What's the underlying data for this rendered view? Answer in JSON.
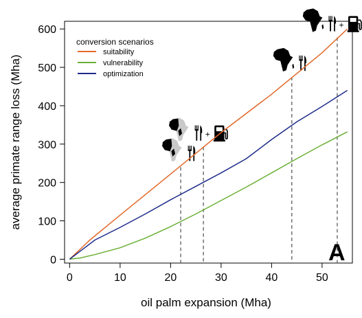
{
  "chart_data": {
    "type": "line",
    "xlabel": "oil palm expansion (Mha)",
    "ylabel": "average primate range loss (Mha)",
    "xlim": [
      -1,
      56
    ],
    "ylim": [
      -10,
      620
    ],
    "xticks": [
      0,
      10,
      20,
      30,
      40,
      50
    ],
    "yticks": [
      0,
      100,
      200,
      300,
      400,
      500,
      600
    ],
    "legend": {
      "title": "conversion scenarios",
      "position": "top-left"
    },
    "panel_label": "A",
    "series": [
      {
        "name": "suitability",
        "color": "#e2692a",
        "x": [
          0,
          2,
          4,
          10,
          20,
          30,
          40,
          50,
          55
        ],
        "y": [
          0,
          25,
          50,
          115,
          222,
          330,
          430,
          538,
          600
        ]
      },
      {
        "name": "vulnerability",
        "color": "#6aaf35",
        "x": [
          0,
          2,
          5,
          10,
          15,
          20,
          25,
          30,
          35,
          40,
          45,
          50,
          55
        ],
        "y": [
          0,
          3,
          12,
          30,
          55,
          85,
          118,
          153,
          188,
          225,
          262,
          298,
          332
        ]
      },
      {
        "name": "optimization",
        "color": "#1b2a8a",
        "x": [
          0,
          2,
          5,
          10,
          15,
          20,
          25,
          30,
          35,
          40,
          45,
          50,
          55
        ],
        "y": [
          0,
          20,
          50,
          83,
          118,
          155,
          190,
          225,
          262,
          312,
          358,
          398,
          440
        ]
      }
    ],
    "markers": [
      {
        "x": 22,
        "y": 240,
        "icons": [
          "africa-partial-icon",
          "utensils-icon"
        ]
      },
      {
        "x": 26.5,
        "y": 293,
        "icons": [
          "africa-partial-icon",
          "utensils-icon",
          "fuel-pump-icon"
        ]
      },
      {
        "x": 44,
        "y": 475,
        "icons": [
          "africa-icon",
          "utensils-icon"
        ]
      },
      {
        "x": 53,
        "y": 578,
        "icons": [
          "africa-icon",
          "utensils-icon",
          "fuel-pump-icon"
        ]
      }
    ],
    "grid": false
  }
}
